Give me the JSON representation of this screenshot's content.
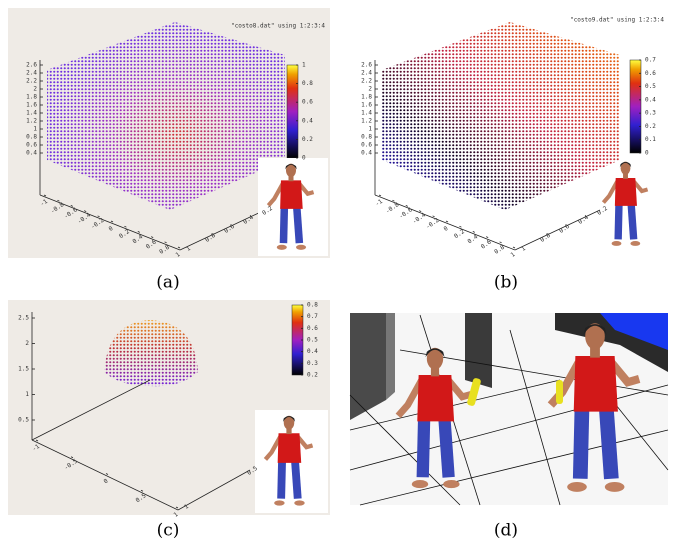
{
  "panels": [
    {
      "legend": "\"costo8.dat\" using 1:2:3:4",
      "z_ticks": [
        2.6,
        2.4,
        2.2,
        2,
        1.8,
        1.6,
        1.4,
        1.2,
        1,
        0.8,
        0.6,
        0.4
      ],
      "colorbar_ticks": [
        1,
        0.8,
        0.6,
        0.4,
        0.2,
        0
      ],
      "x_ticks": [
        -1,
        -0.8,
        -0.6,
        -0.4,
        -0.2,
        0,
        0.2,
        0.4,
        0.6,
        0.8,
        1
      ],
      "y_ticks": [
        1,
        0.8,
        0.6,
        0.4,
        0.2
      ],
      "caption": "(a)"
    },
    {
      "legend": "\"costo9.dat\" using 1:2:3:4",
      "z_ticks": [
        2.6,
        2.4,
        2.2,
        2,
        1.8,
        1.6,
        1.4,
        1.2,
        1,
        0.8,
        0.6,
        0.4
      ],
      "colorbar_ticks": [
        0.7,
        0.6,
        0.5,
        0.4,
        0.3,
        0.2,
        0.1,
        0
      ],
      "x_ticks": [
        -1,
        -0.8,
        -0.6,
        -0.4,
        -0.2,
        0,
        0.2,
        0.4,
        0.6,
        0.8,
        1
      ],
      "y_ticks": [
        1,
        0.8,
        0.6,
        0.4,
        0.2
      ],
      "caption": "(b)"
    },
    {
      "z_ticks": [
        2.5,
        2,
        1.5,
        1,
        0.5
      ],
      "colorbar_ticks": [
        0.8,
        0.7,
        0.6,
        0.5,
        0.4,
        0.3,
        0.2
      ],
      "x_ticks": [
        -1,
        -0.5,
        0,
        0.5,
        1
      ],
      "y_ticks": [
        1,
        0.5
      ],
      "caption": "(c)"
    },
    {
      "caption": "(d)"
    }
  ]
}
